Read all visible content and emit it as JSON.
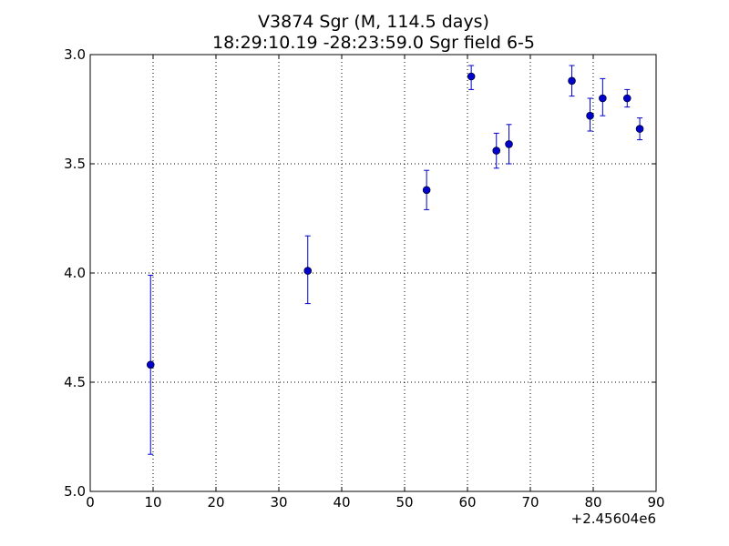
{
  "chart_data": {
    "type": "scatter",
    "title": "V3874 Sgr  (M, 114.5 days)",
    "subtitle": "18:29:10.19 -28:23:59.0 Sgr field 6-5",
    "xlabel": "",
    "ylabel": "",
    "x_offset_label": "+2.45604e6",
    "xlim": [
      0,
      90
    ],
    "ylim": [
      5.0,
      3.0
    ],
    "y_inverted": true,
    "grid": true,
    "grid_style": "dotted",
    "legend": "none",
    "x_ticks": [
      {
        "value": 0,
        "label": "0"
      },
      {
        "value": 10,
        "label": "10"
      },
      {
        "value": 20,
        "label": "20"
      },
      {
        "value": 30,
        "label": "30"
      },
      {
        "value": 40,
        "label": "40"
      },
      {
        "value": 50,
        "label": "50"
      },
      {
        "value": 60,
        "label": "60"
      },
      {
        "value": 70,
        "label": "70"
      },
      {
        "value": 80,
        "label": "80"
      },
      {
        "value": 90,
        "label": "90"
      }
    ],
    "y_ticks": [
      {
        "value": 3.0,
        "label": "3.0"
      },
      {
        "value": 3.5,
        "label": "3.5"
      },
      {
        "value": 4.0,
        "label": "4.0"
      },
      {
        "value": 4.5,
        "label": "4.5"
      },
      {
        "value": 5.0,
        "label": "5.0"
      }
    ],
    "series": [
      {
        "color": "#0000cc",
        "marker": "circle",
        "points": [
          {
            "x": 9.6,
            "y": 4.42,
            "yerr_low": 0.41,
            "yerr_high": 0.41
          },
          {
            "x": 34.6,
            "y": 3.99,
            "yerr_low": 0.16,
            "yerr_high": 0.15
          },
          {
            "x": 53.5,
            "y": 3.62,
            "yerr_low": 0.09,
            "yerr_high": 0.09
          },
          {
            "x": 60.6,
            "y": 3.1,
            "yerr_low": 0.05,
            "yerr_high": 0.06
          },
          {
            "x": 64.6,
            "y": 3.44,
            "yerr_low": 0.08,
            "yerr_high": 0.08
          },
          {
            "x": 66.6,
            "y": 3.41,
            "yerr_low": 0.09,
            "yerr_high": 0.09
          },
          {
            "x": 76.6,
            "y": 3.12,
            "yerr_low": 0.07,
            "yerr_high": 0.07
          },
          {
            "x": 79.5,
            "y": 3.28,
            "yerr_low": 0.08,
            "yerr_high": 0.07
          },
          {
            "x": 81.5,
            "y": 3.2,
            "yerr_low": 0.09,
            "yerr_high": 0.08
          },
          {
            "x": 85.4,
            "y": 3.2,
            "yerr_low": 0.04,
            "yerr_high": 0.04
          },
          {
            "x": 87.4,
            "y": 3.34,
            "yerr_low": 0.05,
            "yerr_high": 0.05
          }
        ]
      }
    ]
  },
  "colors": {
    "marker": "#0000cc",
    "axes": "#000000",
    "grid": "#000000",
    "background": "#ffffff"
  }
}
